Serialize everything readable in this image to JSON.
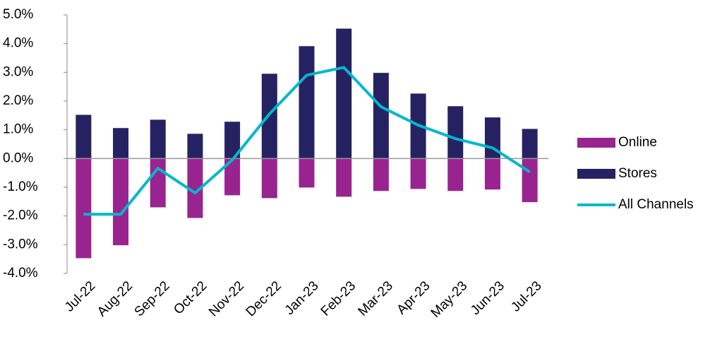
{
  "chart_data": {
    "type": "bar-line",
    "categories": [
      "Jul-22",
      "Aug-22",
      "Sep-22",
      "Oct-22",
      "Nov-22",
      "Dec-22",
      "Jan-23",
      "Feb-23",
      "Mar-23",
      "Apr-23",
      "May-23",
      "Jun-23",
      "Jul-23"
    ],
    "series": [
      {
        "name": "Online",
        "type": "bar",
        "color": "#99248f",
        "values": [
          -3.47,
          -3.02,
          -1.7,
          -2.07,
          -1.28,
          -1.38,
          -1.01,
          -1.33,
          -1.13,
          -1.06,
          -1.13,
          -1.08,
          -1.52
        ]
      },
      {
        "name": "Stores",
        "type": "bar",
        "color": "#262262",
        "values": [
          1.52,
          1.06,
          1.35,
          0.86,
          1.28,
          2.95,
          3.91,
          4.52,
          2.98,
          2.26,
          1.82,
          1.43,
          1.03
        ]
      },
      {
        "name": "All Channels",
        "type": "line",
        "color": "#00b8cc",
        "values": [
          -1.94,
          -1.94,
          -0.34,
          -1.2,
          -0.05,
          1.55,
          2.9,
          3.17,
          1.8,
          1.16,
          0.69,
          0.37,
          -0.47
        ]
      }
    ],
    "ylim": [
      -4,
      5
    ],
    "yticks": [
      {
        "value": -4,
        "label": "-4.0%"
      },
      {
        "value": -3,
        "label": "-3.0%"
      },
      {
        "value": -2,
        "label": "-2.0%"
      },
      {
        "value": -1,
        "label": "-1.0%"
      },
      {
        "value": 0,
        "label": "0.0%"
      },
      {
        "value": 1,
        "label": "1.0%"
      },
      {
        "value": 2,
        "label": "2.0%"
      },
      {
        "value": 3,
        "label": "3.0%"
      },
      {
        "value": 4,
        "label": "4.0%"
      },
      {
        "value": 5,
        "label": "5.0%"
      }
    ],
    "legend": "right"
  }
}
